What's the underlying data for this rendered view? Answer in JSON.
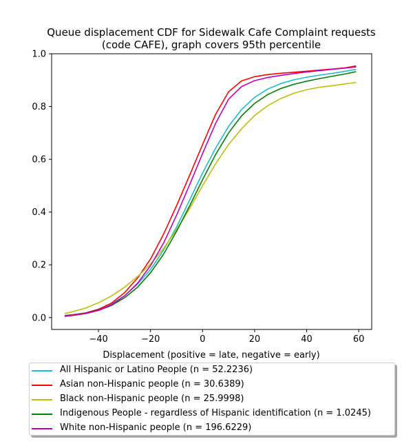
{
  "chart_data": {
    "type": "line",
    "title_lines": [
      "Queue displacement CDF for Sidewalk Cafe Complaint  requests",
      "(code CAFE), graph covers 95th percentile"
    ],
    "xlabel": "Displacement (positive = late, negative = early)",
    "ylabel": "",
    "xlim": [
      -58,
      65
    ],
    "ylim": [
      -0.045,
      1.0
    ],
    "xticks": [
      -40,
      -20,
      0,
      20,
      40,
      60
    ],
    "xtick_labels": [
      "−40",
      "−20",
      "0",
      "20",
      "40",
      "60"
    ],
    "yticks": [
      0.0,
      0.2,
      0.4,
      0.6,
      0.8,
      1.0
    ],
    "ytick_labels": [
      "0.0",
      "0.2",
      "0.4",
      "0.6",
      "0.8",
      "1.0"
    ],
    "grid": false,
    "legend_placement": "below",
    "x": [
      -53,
      -50,
      -45,
      -40,
      -35,
      -30,
      -25,
      -20,
      -15,
      -10,
      -5,
      0,
      5,
      10,
      15,
      20,
      25,
      30,
      35,
      40,
      45,
      50,
      55,
      59
    ],
    "series": [
      {
        "name": "All Hispanic or Latino People (n = 52.2236)",
        "color": "#17becf",
        "values": [
          0.008,
          0.011,
          0.018,
          0.032,
          0.052,
          0.083,
          0.126,
          0.182,
          0.256,
          0.343,
          0.445,
          0.548,
          0.642,
          0.725,
          0.789,
          0.835,
          0.866,
          0.887,
          0.901,
          0.911,
          0.919,
          0.926,
          0.934,
          0.941
        ]
      },
      {
        "name": "Asian non-Hispanic people (n = 30.6389)",
        "color": "#ff0000",
        "values": [
          0.007,
          0.01,
          0.017,
          0.031,
          0.055,
          0.094,
          0.15,
          0.222,
          0.316,
          0.424,
          0.539,
          0.656,
          0.77,
          0.856,
          0.897,
          0.913,
          0.921,
          0.926,
          0.93,
          0.934,
          0.938,
          0.942,
          0.947,
          0.954
        ]
      },
      {
        "name": "Black non-Hispanic people (n = 25.9998)",
        "color": "#bfbf00",
        "values": [
          0.015,
          0.022,
          0.036,
          0.056,
          0.082,
          0.115,
          0.155,
          0.203,
          0.262,
          0.333,
          0.413,
          0.5,
          0.583,
          0.656,
          0.716,
          0.766,
          0.803,
          0.83,
          0.85,
          0.864,
          0.873,
          0.879,
          0.886,
          0.891
        ]
      },
      {
        "name": "Indigenous People - regardless of Hispanic identification (n = 1.0245)",
        "color": "#008000",
        "values": [
          0.005,
          0.008,
          0.015,
          0.027,
          0.046,
          0.075,
          0.115,
          0.17,
          0.24,
          0.327,
          0.423,
          0.523,
          0.618,
          0.7,
          0.765,
          0.812,
          0.845,
          0.868,
          0.884,
          0.896,
          0.906,
          0.915,
          0.924,
          0.932
        ]
      },
      {
        "name": "White non-Hispanic people (n = 196.6229)",
        "color": "#bf00bf",
        "values": [
          0.005,
          0.008,
          0.015,
          0.027,
          0.048,
          0.082,
          0.13,
          0.197,
          0.282,
          0.388,
          0.503,
          0.622,
          0.736,
          0.828,
          0.876,
          0.898,
          0.91,
          0.918,
          0.925,
          0.931,
          0.936,
          0.941,
          0.946,
          0.95
        ]
      }
    ]
  }
}
